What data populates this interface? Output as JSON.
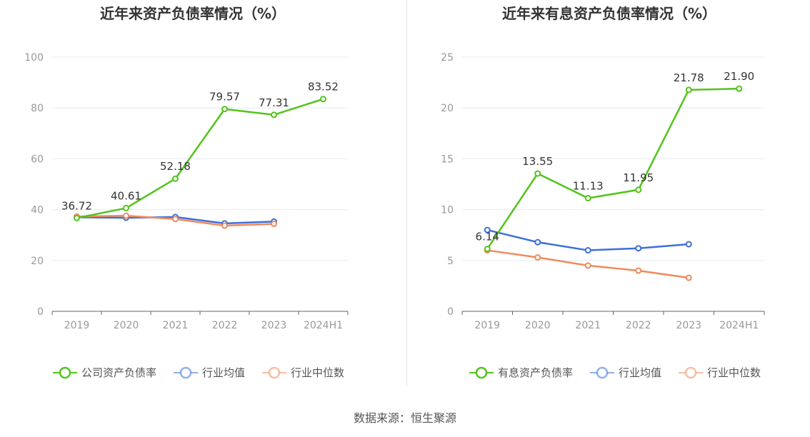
{
  "source": "数据来源：恒生聚源",
  "chart_data": [
    {
      "type": "line",
      "title": "近年来资产负债率情况（%）",
      "categories": [
        "2019",
        "2020",
        "2021",
        "2022",
        "2023",
        "2024H1"
      ],
      "ylim": [
        0,
        100
      ],
      "yticks": [
        0,
        20,
        40,
        60,
        80,
        100
      ],
      "grid": true,
      "legend_position": "bottom",
      "series": [
        {
          "name": "公司资产负债率",
          "color": "#52c41a",
          "labeled": true,
          "values": [
            36.72,
            40.61,
            52.18,
            79.57,
            77.31,
            83.52
          ],
          "labels": [
            "36.72",
            "40.61",
            "52.18",
            "79.57",
            "77.31",
            "83.52"
          ]
        },
        {
          "name": "行业均值",
          "color": "#3b6fd9",
          "labeled": false,
          "values": [
            37.0,
            36.8,
            37.1,
            34.6,
            35.3,
            null
          ]
        },
        {
          "name": "行业中位数",
          "color": "#f08a5d",
          "labeled": false,
          "values": [
            37.3,
            37.6,
            36.3,
            33.7,
            34.4,
            null
          ]
        }
      ]
    },
    {
      "type": "line",
      "title": "近年来有息资产负债率情况（%）",
      "categories": [
        "2019",
        "2020",
        "2021",
        "2022",
        "2023",
        "2024H1"
      ],
      "ylim": [
        0,
        25
      ],
      "yticks": [
        0,
        5,
        10,
        15,
        20,
        25
      ],
      "grid": true,
      "legend_position": "bottom",
      "series": [
        {
          "name": "有息资产负债率",
          "color": "#52c41a",
          "labeled": true,
          "values": [
            6.14,
            13.55,
            11.13,
            11.95,
            21.78,
            21.9
          ],
          "labels": [
            "6.14",
            "13.55",
            "11.13",
            "11.95",
            "21.78",
            "21.90"
          ]
        },
        {
          "name": "行业均值",
          "color": "#3b6fd9",
          "labeled": false,
          "values": [
            8.0,
            6.8,
            6.0,
            6.2,
            6.6,
            null
          ]
        },
        {
          "name": "行业中位数",
          "color": "#f08a5d",
          "labeled": false,
          "values": [
            6.0,
            5.3,
            4.5,
            4.0,
            3.3,
            null
          ]
        }
      ]
    }
  ]
}
